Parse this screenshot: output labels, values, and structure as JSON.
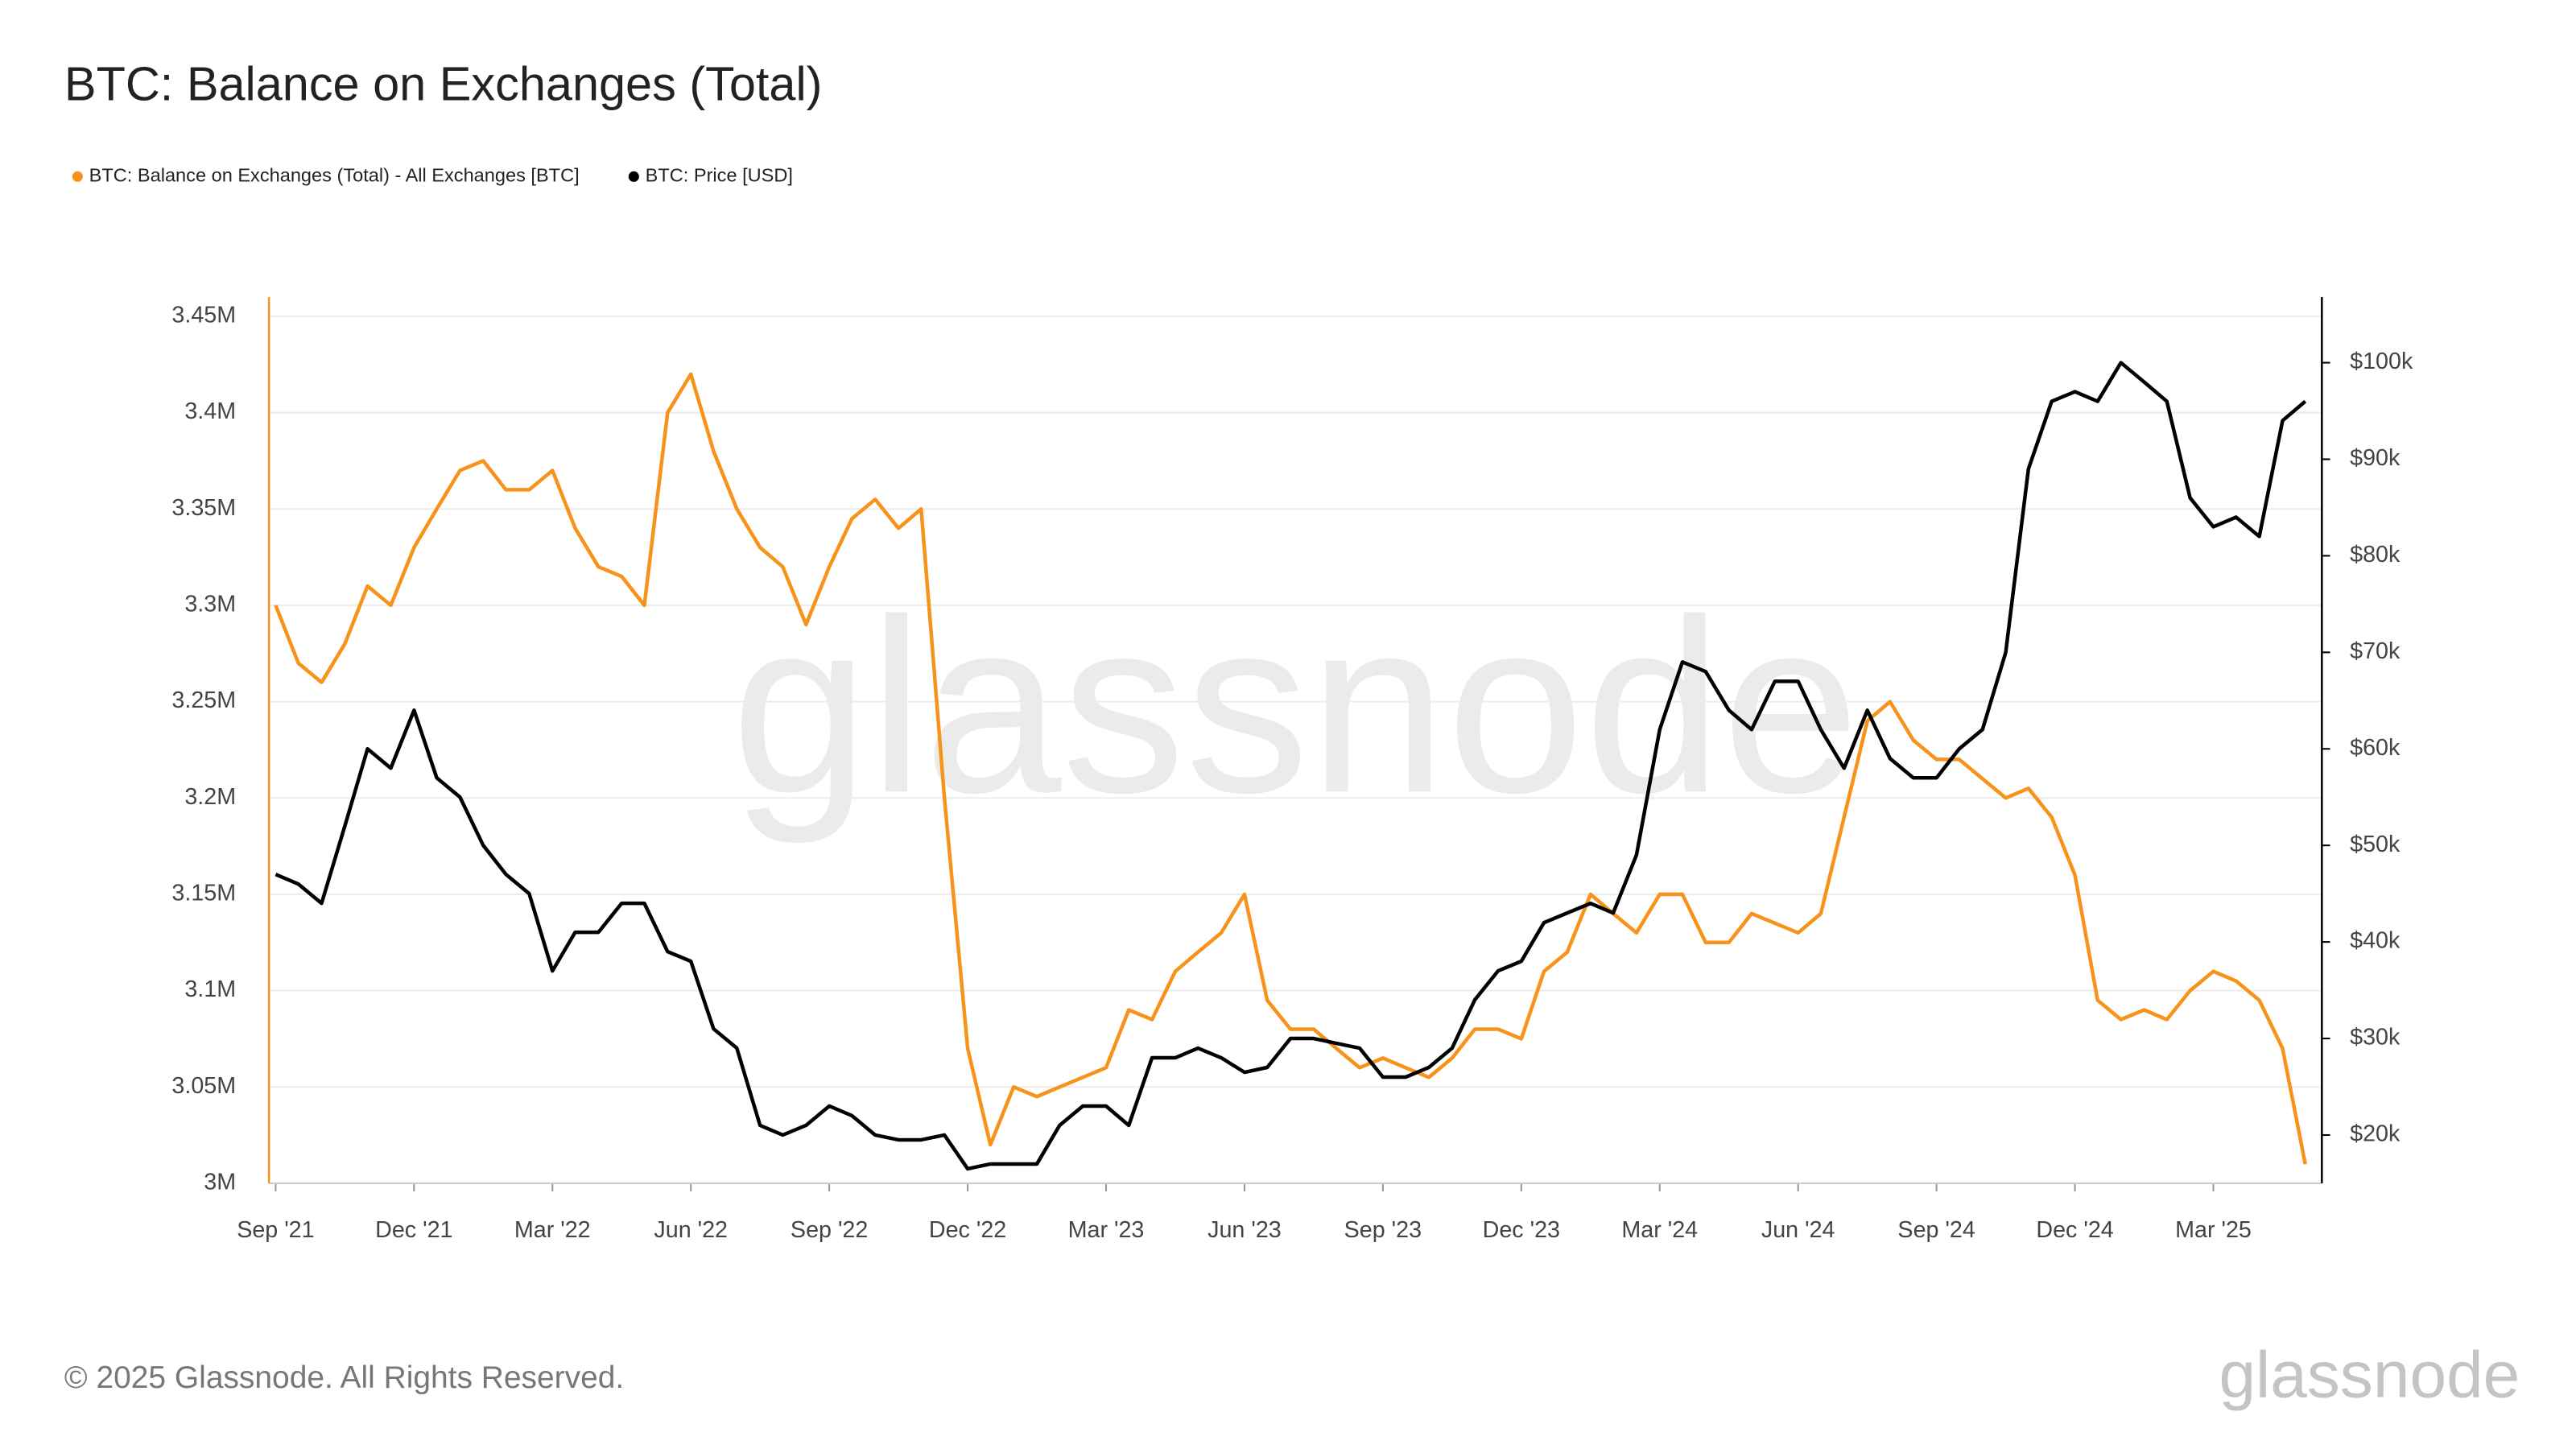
{
  "chart_data": {
    "type": "line",
    "title": "BTC: Balance on Exchanges (Total)",
    "watermark": "glassnode",
    "legend": "top-left",
    "grid": true,
    "x": [
      2021.667,
      2021.708,
      2021.75,
      2021.792,
      2021.833,
      2021.875,
      2021.917,
      2021.958,
      2022.0,
      2022.042,
      2022.083,
      2022.125,
      2022.167,
      2022.208,
      2022.25,
      2022.292,
      2022.333,
      2022.375,
      2022.417,
      2022.458,
      2022.5,
      2022.542,
      2022.583,
      2022.625,
      2022.667,
      2022.708,
      2022.75,
      2022.792,
      2022.833,
      2022.875,
      2022.917,
      2022.958,
      2023.0,
      2023.042,
      2023.083,
      2023.125,
      2023.167,
      2023.208,
      2023.25,
      2023.292,
      2023.333,
      2023.375,
      2023.417,
      2023.458,
      2023.5,
      2023.542,
      2023.583,
      2023.625,
      2023.667,
      2023.708,
      2023.75,
      2023.792,
      2023.833,
      2023.875,
      2023.917,
      2023.958,
      2024.0,
      2024.042,
      2024.083,
      2024.125,
      2024.167,
      2024.208,
      2024.25,
      2024.292,
      2024.333,
      2024.375,
      2024.417,
      2024.458,
      2024.5,
      2024.542,
      2024.583,
      2024.625,
      2024.667,
      2024.708,
      2024.75,
      2024.792,
      2024.833,
      2024.875,
      2024.917,
      2024.958,
      2025.0,
      2025.042,
      2025.083,
      2025.125,
      2025.167,
      2025.208,
      2025.25,
      2025.292,
      2025.333
    ],
    "xlim": [
      2021.655,
      2025.363
    ],
    "xticks": [
      {
        "value": 2021.667,
        "label": "Sep '21"
      },
      {
        "value": 2021.917,
        "label": "Dec '21"
      },
      {
        "value": 2022.167,
        "label": "Mar '22"
      },
      {
        "value": 2022.417,
        "label": "Jun '22"
      },
      {
        "value": 2022.667,
        "label": "Sep '22"
      },
      {
        "value": 2022.917,
        "label": "Dec '22"
      },
      {
        "value": 2023.167,
        "label": "Mar '23"
      },
      {
        "value": 2023.417,
        "label": "Jun '23"
      },
      {
        "value": 2023.667,
        "label": "Sep '23"
      },
      {
        "value": 2023.917,
        "label": "Dec '23"
      },
      {
        "value": 2024.167,
        "label": "Mar '24"
      },
      {
        "value": 2024.417,
        "label": "Jun '24"
      },
      {
        "value": 2024.667,
        "label": "Sep '24"
      },
      {
        "value": 2024.917,
        "label": "Dec '24"
      },
      {
        "value": 2025.167,
        "label": "Mar '25"
      }
    ],
    "ylim": [
      3000000,
      3460000
    ],
    "yticks": [
      {
        "value": 3000000,
        "label": "3M"
      },
      {
        "value": 3050000,
        "label": "3.05M"
      },
      {
        "value": 3100000,
        "label": "3.1M"
      },
      {
        "value": 3150000,
        "label": "3.15M"
      },
      {
        "value": 3200000,
        "label": "3.2M"
      },
      {
        "value": 3250000,
        "label": "3.25M"
      },
      {
        "value": 3300000,
        "label": "3.3M"
      },
      {
        "value": 3350000,
        "label": "3.35M"
      },
      {
        "value": 3400000,
        "label": "3.4M"
      },
      {
        "value": 3450000,
        "label": "3.45M"
      }
    ],
    "y2lim": [
      15000,
      106800
    ],
    "y2ticks": [
      {
        "value": 20000,
        "label": "$20k"
      },
      {
        "value": 30000,
        "label": "$30k"
      },
      {
        "value": 40000,
        "label": "$40k"
      },
      {
        "value": 50000,
        "label": "$50k"
      },
      {
        "value": 60000,
        "label": "$60k"
      },
      {
        "value": 70000,
        "label": "$70k"
      },
      {
        "value": 80000,
        "label": "$80k"
      },
      {
        "value": 90000,
        "label": "$90k"
      },
      {
        "value": 100000,
        "label": "$100k"
      }
    ],
    "series": [
      {
        "name": "BTC: Balance on Exchanges (Total) - All Exchanges [BTC]",
        "color": "#f7931a",
        "axis": "y",
        "values": [
          3300000,
          3270000,
          3260000,
          3280000,
          3310000,
          3300000,
          3330000,
          3350000,
          3370000,
          3375000,
          3360000,
          3360000,
          3370000,
          3340000,
          3320000,
          3315000,
          3300000,
          3400000,
          3420000,
          3380000,
          3350000,
          3330000,
          3320000,
          3290000,
          3320000,
          3345000,
          3355000,
          3340000,
          3350000,
          3200000,
          3070000,
          3020000,
          3050000,
          3045000,
          3050000,
          3055000,
          3060000,
          3090000,
          3085000,
          3110000,
          3120000,
          3130000,
          3150000,
          3095000,
          3080000,
          3080000,
          3070000,
          3060000,
          3065000,
          3060000,
          3055000,
          3065000,
          3080000,
          3080000,
          3075000,
          3110000,
          3120000,
          3150000,
          3140000,
          3130000,
          3150000,
          3150000,
          3125000,
          3125000,
          3140000,
          3135000,
          3130000,
          3140000,
          3190000,
          3240000,
          3250000,
          3230000,
          3220000,
          3220000,
          3210000,
          3200000,
          3205000,
          3190000,
          3160000,
          3095000,
          3085000,
          3090000,
          3085000,
          3100000,
          3110000,
          3105000,
          3095000,
          3070000,
          3010000
        ]
      },
      {
        "name": "BTC: Price [USD]",
        "color": "#000000",
        "axis": "y2",
        "values": [
          47000,
          46000,
          44000,
          52000,
          60000,
          58000,
          64000,
          57000,
          55000,
          50000,
          47000,
          45000,
          37000,
          41000,
          41000,
          44000,
          44000,
          39000,
          38000,
          31000,
          29000,
          21000,
          20000,
          21000,
          23000,
          22000,
          20000,
          19500,
          19500,
          20000,
          16500,
          17000,
          17000,
          17000,
          21000,
          23000,
          23000,
          21000,
          28000,
          28000,
          29000,
          28000,
          26500,
          27000,
          30000,
          30000,
          29500,
          29000,
          26000,
          26000,
          27000,
          29000,
          34000,
          37000,
          38000,
          42000,
          43000,
          44000,
          43000,
          49000,
          62000,
          69000,
          68000,
          64000,
          62000,
          67000,
          67000,
          62000,
          58000,
          64000,
          59000,
          57000,
          57000,
          60000,
          62000,
          70000,
          89000,
          96000,
          97000,
          96000,
          100000,
          98000,
          96000,
          86000,
          83000,
          84000,
          82000,
          94000,
          96000
        ]
      }
    ]
  },
  "footer": {
    "copyright": "© 2025 Glassnode. All Rights Reserved.",
    "logo": "glassnode"
  }
}
